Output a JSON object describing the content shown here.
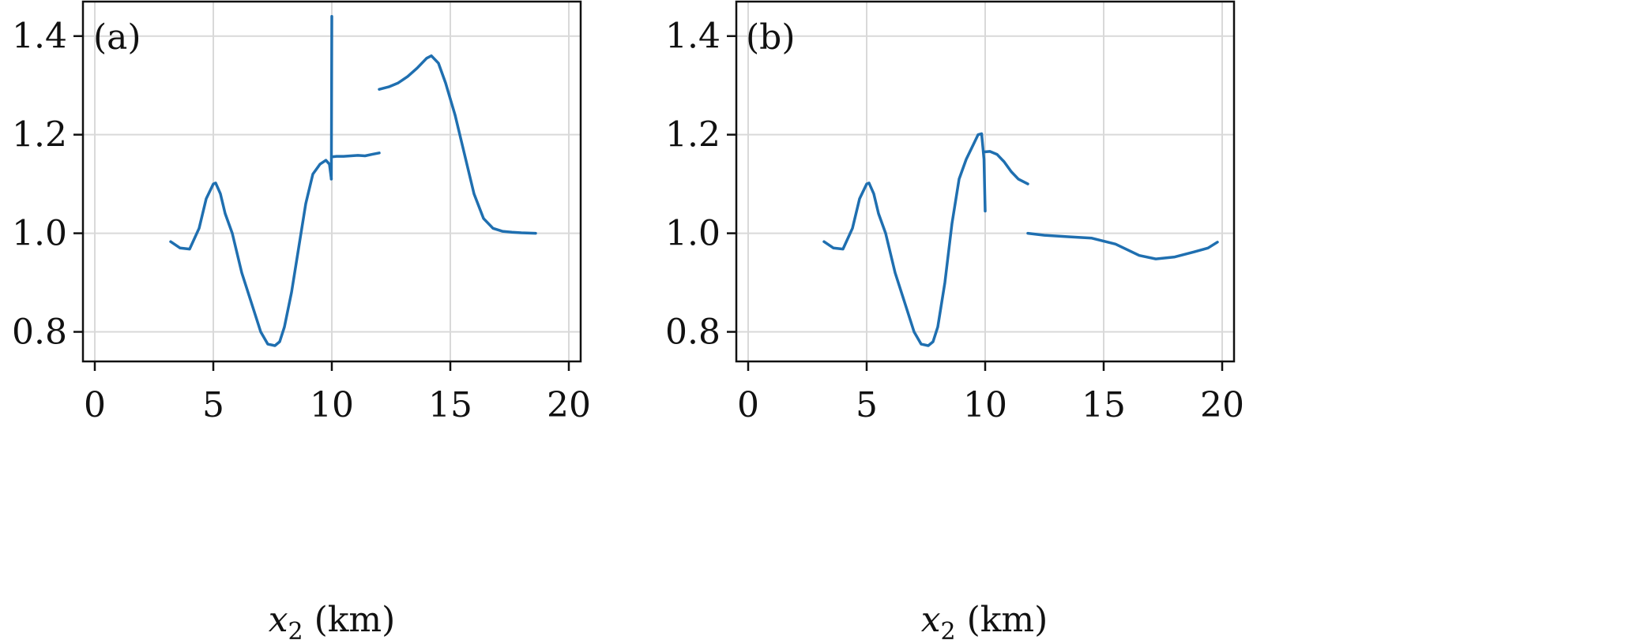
{
  "colors": {
    "series": "#1f6fb0",
    "grid": "#d9d9d9",
    "axis": "#111111"
  },
  "chart_data": [
    {
      "type": "line",
      "panel_label": "(a)",
      "xlabel_var": "x",
      "xlabel_sub": "2",
      "xlabel_unit": " (km)",
      "ylabel": "",
      "xlim": [
        -0.5,
        20.5
      ],
      "ylim": [
        0.74,
        1.47
      ],
      "xticks": [
        0,
        5,
        10,
        15,
        20
      ],
      "xtick_labels": [
        "0",
        "5",
        "10",
        "15",
        "20"
      ],
      "yticks": [
        0.8,
        1.0,
        1.2,
        1.4
      ],
      "ytick_labels": [
        "0.8",
        "1.0",
        "1.2",
        "1.4"
      ],
      "grid": true,
      "series_segments": [
        {
          "x": [
            3.2,
            3.6,
            4.0,
            4.4,
            4.7,
            5.0,
            5.1,
            5.3,
            5.5,
            5.8,
            6.2,
            6.6,
            7.0,
            7.3,
            7.6,
            7.8,
            8.0,
            8.3,
            8.6,
            8.9,
            9.2,
            9.5,
            9.75,
            9.9,
            9.98
          ],
          "y": [
            0.983,
            0.97,
            0.968,
            1.01,
            1.07,
            1.1,
            1.102,
            1.08,
            1.04,
            1.0,
            0.92,
            0.86,
            0.8,
            0.775,
            0.772,
            0.78,
            0.81,
            0.88,
            0.97,
            1.06,
            1.12,
            1.14,
            1.148,
            1.14,
            1.11
          ]
        },
        {
          "x": [
            9.98,
            10.0
          ],
          "y": [
            1.11,
            1.44
          ]
        },
        {
          "x": [
            10.0,
            10.2,
            10.5,
            10.8,
            11.1,
            11.4,
            11.7,
            12.0
          ],
          "y": [
            1.155,
            1.156,
            1.156,
            1.157,
            1.158,
            1.157,
            1.16,
            1.163
          ]
        },
        {
          "x": [
            12.0,
            12.4,
            12.8,
            13.2,
            13.6,
            14.0,
            14.2,
            14.5,
            14.8,
            15.2,
            15.6,
            16.0,
            16.4,
            16.8,
            17.2,
            17.6,
            18.0,
            18.6
          ],
          "y": [
            1.292,
            1.297,
            1.305,
            1.318,
            1.335,
            1.355,
            1.36,
            1.345,
            1.305,
            1.24,
            1.16,
            1.08,
            1.03,
            1.01,
            1.004,
            1.002,
            1.001,
            1.0
          ]
        }
      ]
    },
    {
      "type": "line",
      "panel_label": "(b)",
      "xlabel_var": "x",
      "xlabel_sub": "2",
      "xlabel_unit": " (km)",
      "ylabel": "",
      "xlim": [
        -0.5,
        20.5
      ],
      "ylim": [
        0.74,
        1.47
      ],
      "xticks": [
        0,
        5,
        10,
        15,
        20
      ],
      "xtick_labels": [
        "0",
        "5",
        "10",
        "15",
        "20"
      ],
      "yticks": [
        0.8,
        1.0,
        1.2,
        1.4
      ],
      "ytick_labels": [
        "0.8",
        "1.0",
        "1.2",
        "1.4"
      ],
      "grid": true,
      "series_segments": [
        {
          "x": [
            3.2,
            3.6,
            4.0,
            4.4,
            4.7,
            5.0,
            5.1,
            5.3,
            5.5,
            5.8,
            6.2,
            6.6,
            7.0,
            7.3,
            7.6,
            7.8,
            8.0,
            8.3,
            8.6,
            8.9,
            9.2,
            9.5,
            9.7,
            9.85,
            9.95,
            10.0
          ],
          "y": [
            0.983,
            0.97,
            0.968,
            1.01,
            1.07,
            1.1,
            1.102,
            1.08,
            1.04,
            1.0,
            0.92,
            0.86,
            0.8,
            0.775,
            0.772,
            0.78,
            0.81,
            0.9,
            1.02,
            1.11,
            1.15,
            1.18,
            1.2,
            1.202,
            1.15,
            1.045
          ]
        },
        {
          "x": [
            9.95,
            10.2,
            10.5,
            10.8,
            11.1,
            11.4,
            11.8
          ],
          "y": [
            1.165,
            1.166,
            1.16,
            1.145,
            1.125,
            1.11,
            1.1
          ]
        },
        {
          "x": [
            11.8,
            12.5,
            13.5,
            14.5,
            15.5,
            16.5,
            17.2,
            18.0,
            18.8,
            19.4,
            19.8
          ],
          "y": [
            1.0,
            0.996,
            0.993,
            0.99,
            0.978,
            0.955,
            0.948,
            0.952,
            0.962,
            0.97,
            0.982
          ]
        }
      ]
    }
  ]
}
